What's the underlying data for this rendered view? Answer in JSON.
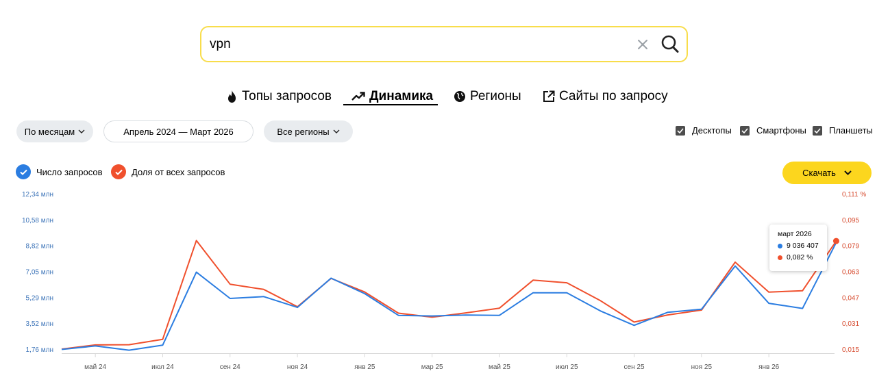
{
  "search": {
    "query": "vpn"
  },
  "tabs": [
    {
      "label": "Топы запросов",
      "icon": "fire-icon"
    },
    {
      "label": "Динамика",
      "icon": "trend-icon",
      "active": true
    },
    {
      "label": "Регионы",
      "icon": "globe-icon"
    },
    {
      "label": "Сайты по запросу",
      "icon": "external-link-icon"
    }
  ],
  "filters": {
    "period_label": "По месяцам",
    "range_label": "Апрель 2024 — Март 2026",
    "region_label": "Все регионы"
  },
  "devices": [
    {
      "label": "Десктопы",
      "checked": true
    },
    {
      "label": "Смартфоны",
      "checked": true
    },
    {
      "label": "Планшеты",
      "checked": true
    }
  ],
  "legend": [
    {
      "label": "Число запросов",
      "color": "#2b7de1",
      "checked": true
    },
    {
      "label": "Доля от всех запросов",
      "color": "#f0502d",
      "checked": true
    }
  ],
  "download_label": "Скачать",
  "tooltip": {
    "month": "март 2026",
    "count": "9 036 407",
    "share": "0,082 %"
  },
  "chart_data": {
    "type": "line",
    "x": [
      "апр 24",
      "май 24",
      "июн 24",
      "июл 24",
      "авг 24",
      "сен 24",
      "окт 24",
      "ноя 24",
      "дек 24",
      "янв 25",
      "фев 25",
      "мар 25",
      "апр 25",
      "май 25",
      "июн 25",
      "июл 25",
      "авг 25",
      "сен 25",
      "окт 25",
      "ноя 25",
      "дек 25",
      "янв 26",
      "фев 26",
      "мар 26"
    ],
    "x_tick_labels": [
      "май 24",
      "июл 24",
      "сен 24",
      "ноя 24",
      "янв 25",
      "мар 25",
      "май 25",
      "июл 25",
      "сен 25",
      "ноя 25",
      "янв 26"
    ],
    "y_left_ticks": [
      "1,76 млн",
      "3,52 млн",
      "5,29 млн",
      "7,05 млн",
      "8,82 млн",
      "10,58 млн",
      "12,34 млн"
    ],
    "y_left_lim": [
      1.76,
      12.34
    ],
    "y_right_ticks": [
      "0,015",
      "0,031",
      "0,047",
      "0,063",
      "0,079",
      "0,095",
      "0,111 %"
    ],
    "y_right_lim": [
      0.015,
      0.111
    ],
    "series": [
      {
        "name": "Число запросов",
        "axis": "left",
        "color": "#2b7de1",
        "values": [
          1.76,
          2.0,
          1.71,
          2.05,
          7.02,
          5.23,
          5.36,
          4.62,
          6.61,
          5.56,
          4.08,
          4.04,
          4.1,
          4.08,
          5.62,
          5.62,
          4.38,
          3.4,
          4.29,
          4.5,
          7.44,
          4.9,
          4.55,
          9.04
        ]
      },
      {
        "name": "Доля от всех запросов",
        "axis": "right",
        "color": "#f0502d",
        "values": [
          0.0152,
          0.0178,
          0.0179,
          0.0212,
          0.0823,
          0.0553,
          0.0521,
          0.0414,
          0.0589,
          0.0505,
          0.0374,
          0.0349,
          0.0376,
          0.0405,
          0.0578,
          0.0562,
          0.0451,
          0.0319,
          0.0363,
          0.0393,
          0.0689,
          0.0504,
          0.0513,
          0.082
        ]
      }
    ]
  }
}
